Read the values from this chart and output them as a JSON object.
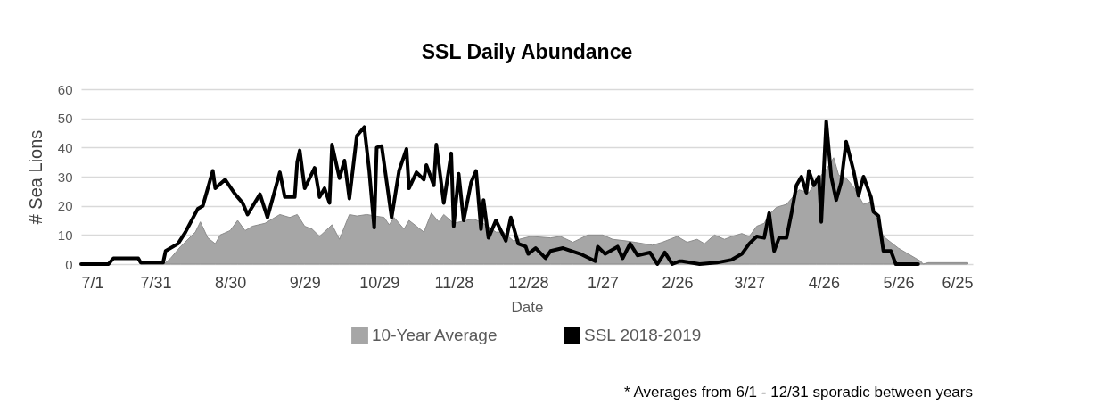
{
  "chart_data": {
    "type": "area",
    "title": "SSL Daily Abundance",
    "xlabel": "Date",
    "ylabel": "# Sea Lions",
    "xlim": [
      "2018-07-01",
      "2019-06-25"
    ],
    "xticks": [
      {
        "value": "2018-07-01",
        "label": "7/1"
      },
      {
        "value": "2018-07-31",
        "label": "7/31"
      },
      {
        "value": "2018-08-30",
        "label": "8/30"
      },
      {
        "value": "2018-09-29",
        "label": "9/29"
      },
      {
        "value": "2018-10-29",
        "label": "10/29"
      },
      {
        "value": "2018-11-28",
        "label": "11/28"
      },
      {
        "value": "2018-12-28",
        "label": "12/28"
      },
      {
        "value": "2019-01-27",
        "label": "1/27"
      },
      {
        "value": "2019-02-26",
        "label": "2/26"
      },
      {
        "value": "2019-03-27",
        "label": "3/27"
      },
      {
        "value": "2019-04-26",
        "label": "4/26"
      },
      {
        "value": "2019-05-26",
        "label": "5/26"
      },
      {
        "value": "2019-06-25",
        "label": "6/25"
      }
    ],
    "ylim": [
      0,
      60
    ],
    "yticks": [
      0,
      10,
      20,
      30,
      40,
      50,
      60
    ],
    "grid": "y",
    "legend": "bottom",
    "annotations": [
      "* Averages from 6/1 - 12/31 sporadic between years"
    ],
    "series": [
      {
        "name": "10-Year Average",
        "color": "#a6a6a6",
        "x": [
          "2018-07-25",
          "2018-08-04",
          "2018-08-06",
          "2018-08-10",
          "2018-08-16",
          "2018-08-18",
          "2018-08-21",
          "2018-08-24",
          "2018-08-26",
          "2018-08-30",
          "2018-09-02",
          "2018-09-05",
          "2018-09-08",
          "2018-09-13",
          "2018-09-19",
          "2018-09-23",
          "2018-09-26",
          "2018-09-29",
          "2018-10-02",
          "2018-10-05",
          "2018-10-10",
          "2018-10-13",
          "2018-10-17",
          "2018-10-20",
          "2018-10-24",
          "2018-10-31",
          "2018-11-02",
          "2018-11-04",
          "2018-11-08",
          "2018-11-10",
          "2018-11-16",
          "2018-11-19",
          "2018-11-22",
          "2018-11-24",
          "2018-11-28",
          "2018-12-03",
          "2018-12-06",
          "2018-12-10",
          "2018-12-15",
          "2018-12-18",
          "2018-12-22",
          "2018-12-29",
          "2019-01-06",
          "2019-01-10",
          "2019-01-15",
          "2019-01-21",
          "2019-01-27",
          "2019-01-31",
          "2019-02-05",
          "2019-02-09",
          "2019-02-16",
          "2019-02-20",
          "2019-02-26",
          "2019-03-02",
          "2019-03-06",
          "2019-03-09",
          "2019-03-13",
          "2019-03-17",
          "2019-03-20",
          "2019-03-24",
          "2019-03-27",
          "2019-03-30",
          "2019-04-02",
          "2019-04-04",
          "2019-04-07",
          "2019-04-11",
          "2019-04-14",
          "2019-04-16",
          "2019-04-20",
          "2019-04-23",
          "2019-04-27",
          "2019-04-30",
          "2019-05-02",
          "2019-05-05",
          "2019-05-08",
          "2019-05-12",
          "2019-05-15",
          "2019-05-17",
          "2019-05-20",
          "2019-05-23",
          "2019-05-26",
          "2019-05-30",
          "2019-06-04",
          "2019-06-05",
          "2019-06-07",
          "2019-06-23"
        ],
        "values": [
          0,
          0.5,
          2,
          6,
          11,
          14.5,
          9,
          7,
          10,
          11.5,
          15,
          11.5,
          13,
          14,
          17,
          16,
          17,
          13,
          12,
          9.5,
          13.5,
          8.5,
          17,
          16.5,
          17,
          16,
          13.5,
          16,
          12,
          15,
          11,
          17.5,
          14.5,
          17,
          14,
          15,
          15.5,
          14,
          11,
          11,
          8,
          9.5,
          9,
          9.5,
          7.5,
          10,
          10,
          8.5,
          8,
          7.5,
          6.5,
          7.5,
          9.5,
          7.5,
          8.5,
          7,
          10,
          8.5,
          9.5,
          10.5,
          9.5,
          13,
          14,
          17,
          19.5,
          20.5,
          23.5,
          25.5,
          24.5,
          28.5,
          32.5,
          36.5,
          30.5,
          29.5,
          26.5,
          20.5,
          21.5,
          16.5,
          9.5,
          7.5,
          5.5,
          3.5,
          1,
          0,
          0.5,
          0.5
        ]
      },
      {
        "name": "SSL 2018-2019",
        "type": "line",
        "color": "#000000",
        "x": [
          "2018-07-01",
          "2018-07-12",
          "2018-07-14",
          "2018-07-24",
          "2018-07-25",
          "2018-08-03",
          "2018-08-04",
          "2018-08-09",
          "2018-08-12",
          "2018-08-17",
          "2018-08-19",
          "2018-08-23",
          "2018-08-24",
          "2018-08-28",
          "2018-09-01",
          "2018-09-04",
          "2018-09-06",
          "2018-09-11",
          "2018-09-14",
          "2018-09-19",
          "2018-09-21",
          "2018-09-25",
          "2018-09-26",
          "2018-09-27",
          "2018-09-29",
          "2018-10-03",
          "2018-10-05",
          "2018-10-07",
          "2018-10-09",
          "2018-10-10",
          "2018-10-13",
          "2018-10-15",
          "2018-10-17",
          "2018-10-20",
          "2018-10-23",
          "2018-10-25",
          "2018-10-27",
          "2018-10-28",
          "2018-10-30",
          "2018-11-03",
          "2018-11-06",
          "2018-11-09",
          "2018-11-10",
          "2018-11-13",
          "2018-11-16",
          "2018-11-17",
          "2018-11-20",
          "2018-11-21",
          "2018-11-24",
          "2018-11-27",
          "2018-11-28",
          "2018-11-30",
          "2018-12-02",
          "2018-12-05",
          "2018-12-07",
          "2018-12-09",
          "2018-12-10",
          "2018-12-12",
          "2018-12-15",
          "2018-12-19",
          "2018-12-21",
          "2018-12-24",
          "2018-12-27",
          "2018-12-28",
          "2018-12-31",
          "2019-01-04",
          "2019-01-06",
          "2019-01-11",
          "2019-01-18",
          "2019-01-24",
          "2019-01-25",
          "2019-01-28",
          "2019-02-02",
          "2019-02-04",
          "2019-02-07",
          "2019-02-10",
          "2019-02-15",
          "2019-02-18",
          "2019-02-21",
          "2019-02-24",
          "2019-02-27",
          "2019-02-28",
          "2019-03-07",
          "2019-03-14",
          "2019-03-20",
          "2019-03-24",
          "2019-03-27",
          "2019-03-30",
          "2019-04-02",
          "2019-04-04",
          "2019-04-06",
          "2019-04-08",
          "2019-04-11",
          "2019-04-13",
          "2019-04-15",
          "2019-04-17",
          "2019-04-19",
          "2019-04-20",
          "2019-04-22",
          "2019-04-24",
          "2019-04-25",
          "2019-04-27",
          "2019-04-29",
          "2019-05-01",
          "2019-05-03",
          "2019-05-05",
          "2019-05-08",
          "2019-05-10",
          "2019-05-12",
          "2019-05-15",
          "2019-05-16",
          "2019-05-18",
          "2019-05-20",
          "2019-05-23",
          "2019-05-25",
          "2019-06-03"
        ],
        "values": [
          0,
          0,
          2,
          2,
          0.5,
          0.5,
          4.5,
          7,
          11,
          19,
          20,
          32,
          26,
          29,
          24,
          21,
          17,
          24,
          16,
          31.5,
          23,
          23,
          35,
          39,
          26,
          33,
          23,
          26,
          21,
          41,
          29.5,
          35.5,
          22.5,
          44,
          47,
          32,
          12.5,
          40,
          40.5,
          16,
          32,
          39.5,
          26,
          31.5,
          29,
          34,
          27,
          41,
          21,
          38,
          13,
          31,
          15,
          28,
          32,
          12,
          22,
          9,
          15,
          8,
          16,
          7,
          6,
          3.5,
          5.5,
          2,
          4.5,
          5.5,
          3.5,
          1,
          6,
          3.5,
          6,
          2,
          7,
          3,
          4,
          0,
          4,
          0,
          1,
          1,
          0,
          0.5,
          1.5,
          3.5,
          7,
          9.5,
          9,
          17.5,
          4.5,
          9,
          9,
          17.5,
          27,
          30,
          24.5,
          32,
          27,
          30,
          14.5,
          49,
          30,
          22,
          28,
          42,
          32,
          23.5,
          30,
          23,
          18,
          16.5,
          4.5,
          4.5,
          0,
          0
        ]
      }
    ]
  }
}
